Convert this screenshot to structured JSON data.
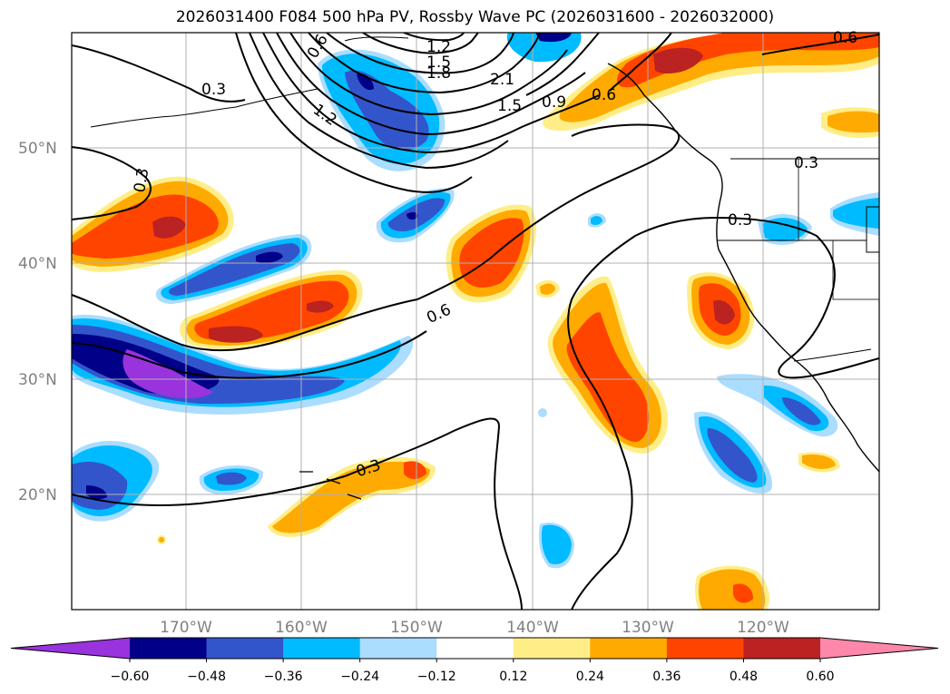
{
  "title": "2026031400 F084 500 hPa PV, Rossby Wave PC (2026031600 - 2026032000)",
  "lat_labels": [
    "50°N",
    "40°N",
    "30°N",
    "20°N"
  ],
  "lon_labels": [
    "170°W",
    "160°W",
    "150°W",
    "140°W",
    "130°W",
    "120°W"
  ],
  "contour_labels": [
    "0.3",
    "1.2",
    "1.5",
    "1.8",
    "2.1",
    "1.5",
    "0.9",
    "0.6",
    "0.3",
    "1.2",
    "0.3",
    "0.3",
    "0.6",
    "0.6",
    "0.3",
    "0.6"
  ],
  "colorbar": {
    "ticks": [
      "−0.60",
      "−0.48",
      "−0.36",
      "−0.24",
      "−0.12",
      "0.12",
      "0.24",
      "0.36",
      "0.48",
      "0.60"
    ],
    "colors": [
      "#9933dd",
      "#000088",
      "#3355cc",
      "#00bbff",
      "#aaddff",
      "#ffffff",
      "#ffee88",
      "#ffaa00",
      "#ff4400",
      "#bb2222",
      "#ff88aa"
    ]
  }
}
